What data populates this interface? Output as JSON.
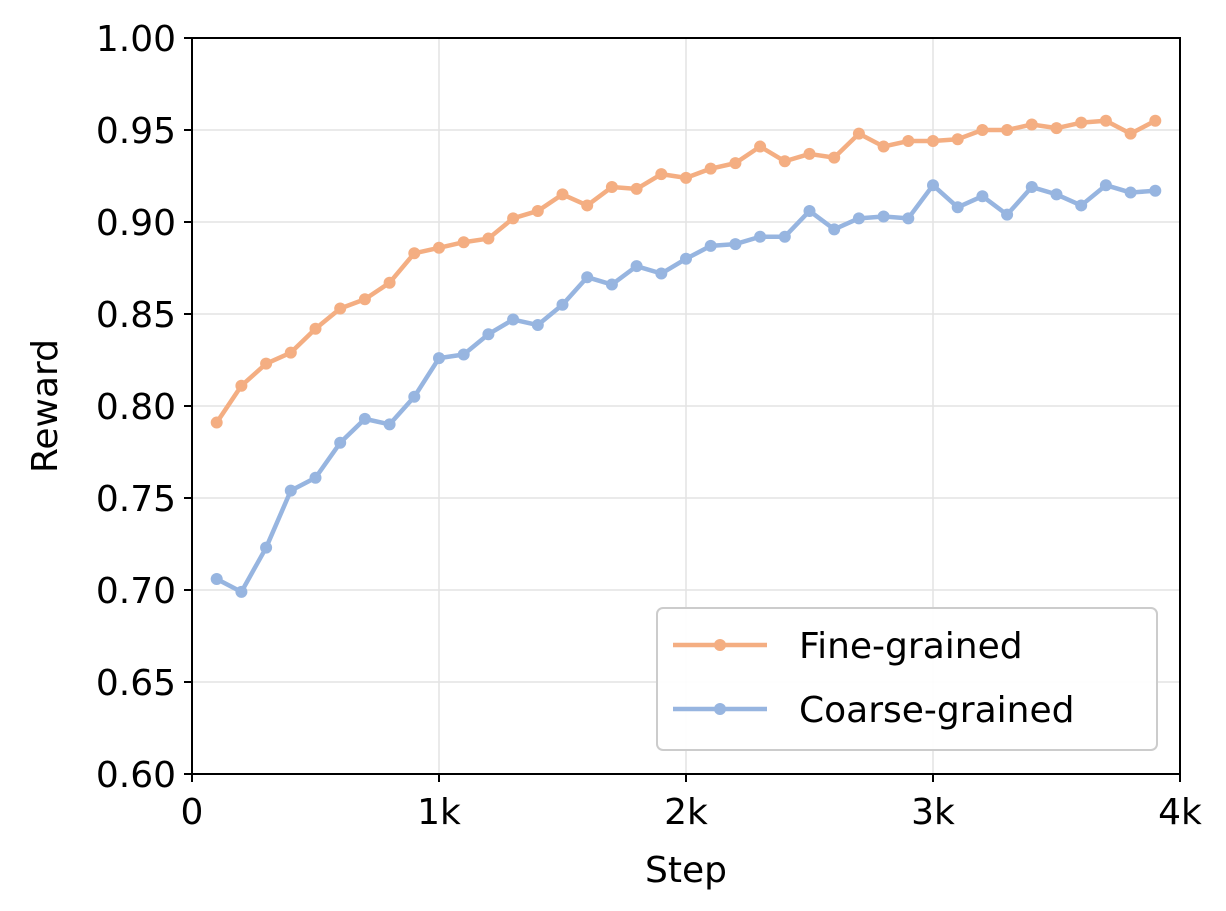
{
  "chart_data": {
    "type": "line",
    "title": "",
    "xlabel": "Step",
    "ylabel": "Reward",
    "xlim": [
      0,
      4000
    ],
    "ylim": [
      0.6,
      1.0
    ],
    "xticks": [
      {
        "value": 0,
        "label": "0"
      },
      {
        "value": 1000,
        "label": "1k"
      },
      {
        "value": 2000,
        "label": "2k"
      },
      {
        "value": 3000,
        "label": "3k"
      },
      {
        "value": 4000,
        "label": "4k"
      }
    ],
    "yticks": [
      {
        "value": 0.6,
        "label": "0.60"
      },
      {
        "value": 0.65,
        "label": "0.65"
      },
      {
        "value": 0.7,
        "label": "0.70"
      },
      {
        "value": 0.75,
        "label": "0.75"
      },
      {
        "value": 0.8,
        "label": "0.80"
      },
      {
        "value": 0.85,
        "label": "0.85"
      },
      {
        "value": 0.9,
        "label": "0.90"
      },
      {
        "value": 0.95,
        "label": "0.95"
      },
      {
        "value": 1.0,
        "label": "1.00"
      }
    ],
    "grid": true,
    "legend_position": "lower-right",
    "x": [
      100,
      200,
      300,
      400,
      500,
      600,
      700,
      800,
      900,
      1000,
      1100,
      1200,
      1300,
      1400,
      1500,
      1600,
      1700,
      1800,
      1900,
      2000,
      2100,
      2200,
      2300,
      2400,
      2500,
      2600,
      2700,
      2800,
      2900,
      3000,
      3100,
      3200,
      3300,
      3400,
      3500,
      3600,
      3700,
      3800,
      3900
    ],
    "series": [
      {
        "name": "Fine-grained",
        "color": "#f4ae82",
        "values": [
          0.791,
          0.811,
          0.823,
          0.829,
          0.842,
          0.853,
          0.858,
          0.867,
          0.883,
          0.886,
          0.889,
          0.891,
          0.902,
          0.906,
          0.915,
          0.909,
          0.919,
          0.918,
          0.926,
          0.924,
          0.929,
          0.932,
          0.941,
          0.933,
          0.937,
          0.935,
          0.948,
          0.941,
          0.944,
          0.944,
          0.945,
          0.95,
          0.95,
          0.953,
          0.951,
          0.954,
          0.955,
          0.948,
          0.955
        ]
      },
      {
        "name": "Coarse-grained",
        "color": "#97b5e0",
        "values": [
          0.706,
          0.699,
          0.723,
          0.754,
          0.761,
          0.78,
          0.793,
          0.79,
          0.805,
          0.826,
          0.828,
          0.839,
          0.847,
          0.844,
          0.855,
          0.87,
          0.866,
          0.876,
          0.872,
          0.88,
          0.887,
          0.888,
          0.892,
          0.892,
          0.906,
          0.896,
          0.902,
          0.903,
          0.902,
          0.92,
          0.908,
          0.914,
          0.904,
          0.919,
          0.915,
          0.909,
          0.92,
          0.916,
          0.917
        ]
      }
    ]
  }
}
